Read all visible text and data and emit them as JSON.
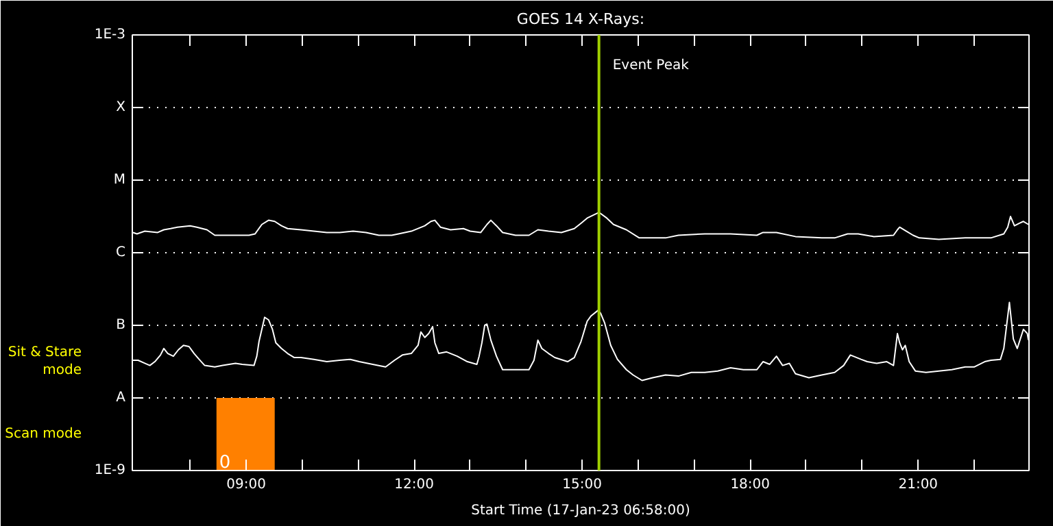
{
  "chart_data": {
    "type": "line",
    "title": "GOES 14 X-Rays:",
    "xlabel": "Start Time (17-Jan-23 06:58:00)",
    "log": "y",
    "grid": "y",
    "line_style": "solid",
    "marker": "none",
    "xlim": [
      6.967,
      22.98
    ],
    "xticks": [
      {
        "value": 8,
        "label": null
      },
      {
        "value": 9,
        "label": "09:00"
      },
      {
        "value": 10,
        "label": null
      },
      {
        "value": 11,
        "label": null
      },
      {
        "value": 12,
        "label": "12:00"
      },
      {
        "value": 13,
        "label": null
      },
      {
        "value": 14,
        "label": null
      },
      {
        "value": 15,
        "label": "15:00"
      },
      {
        "value": 16,
        "label": null
      },
      {
        "value": 17,
        "label": null
      },
      {
        "value": 18,
        "label": "18:00"
      },
      {
        "value": 19,
        "label": null
      },
      {
        "value": 20,
        "label": null
      },
      {
        "value": 21,
        "label": "21:00"
      },
      {
        "value": 22,
        "label": null
      }
    ],
    "ylim": [
      1e-09,
      0.001
    ],
    "yticks": [
      {
        "value": 1e-09,
        "label": "1E-9"
      },
      {
        "value": 1e-08,
        "label": "A"
      },
      {
        "value": 1e-07,
        "label": "B"
      },
      {
        "value": 1e-06,
        "label": "C"
      },
      {
        "value": 1e-05,
        "label": "M"
      },
      {
        "value": 0.0001,
        "label": "X"
      },
      {
        "value": 0.001,
        "label": "1E-3"
      }
    ],
    "series": [
      {
        "color": "#ffffff",
        "x": [
          6.98,
          7.05,
          7.19,
          7.42,
          7.53,
          7.65,
          7.77,
          8.0,
          8.12,
          8.3,
          8.44,
          8.81,
          9.05,
          9.16,
          9.28,
          9.4,
          9.51,
          9.63,
          9.74,
          9.98,
          10.21,
          10.44,
          10.67,
          10.91,
          11.14,
          11.37,
          11.6,
          11.72,
          11.95,
          12.19,
          12.3,
          12.37,
          12.47,
          12.65,
          12.88,
          13.0,
          13.19,
          13.3,
          13.37,
          13.47,
          13.58,
          13.81,
          14.05,
          14.21,
          14.4,
          14.63,
          14.86,
          14.98,
          15.09,
          15.3,
          15.44,
          15.56,
          15.79,
          16.02,
          16.49,
          16.72,
          17.19,
          17.65,
          18.12,
          18.23,
          18.47,
          18.81,
          19.28,
          19.51,
          19.74,
          19.93,
          20.21,
          20.56,
          20.63,
          20.67,
          20.79,
          20.91,
          21.02,
          21.37,
          21.84,
          22.3,
          22.53,
          22.6,
          22.65,
          22.72,
          22.81,
          22.88,
          22.97
        ],
        "values": [
          1.9e-06,
          1.82e-06,
          1.98e-06,
          1.9e-06,
          2.07e-06,
          2.15e-06,
          2.25e-06,
          2.35e-06,
          2.25e-06,
          2.07e-06,
          1.74e-06,
          1.74e-06,
          1.74e-06,
          1.82e-06,
          2.45e-06,
          2.8e-06,
          2.7e-06,
          2.35e-06,
          2.15e-06,
          2.07e-06,
          1.98e-06,
          1.9e-06,
          1.9e-06,
          1.98e-06,
          1.9e-06,
          1.74e-06,
          1.74e-06,
          1.82e-06,
          1.98e-06,
          2.35e-06,
          2.7e-06,
          2.8e-06,
          2.25e-06,
          2.07e-06,
          2.15e-06,
          1.98e-06,
          1.9e-06,
          2.45e-06,
          2.8e-06,
          2.35e-06,
          1.9e-06,
          1.74e-06,
          1.74e-06,
          2.07e-06,
          1.98e-06,
          1.9e-06,
          2.15e-06,
          2.55e-06,
          3e-06,
          3.6e-06,
          3e-06,
          2.45e-06,
          2.07e-06,
          1.6e-06,
          1.6e-06,
          1.74e-06,
          1.82e-06,
          1.82e-06,
          1.74e-06,
          1.9e-06,
          1.9e-06,
          1.67e-06,
          1.6e-06,
          1.6e-06,
          1.82e-06,
          1.82e-06,
          1.67e-06,
          1.74e-06,
          2.07e-06,
          2.25e-06,
          1.98e-06,
          1.74e-06,
          1.6e-06,
          1.53e-06,
          1.6e-06,
          1.6e-06,
          1.82e-06,
          2.25e-06,
          3.16e-06,
          2.35e-06,
          2.55e-06,
          2.7e-06,
          2.45e-06
        ]
      },
      {
        "color": "#ffffff",
        "x": [
          6.98,
          7.07,
          7.19,
          7.28,
          7.37,
          7.47,
          7.53,
          7.6,
          7.7,
          7.79,
          7.88,
          7.98,
          8.07,
          8.16,
          8.26,
          8.44,
          8.58,
          8.81,
          8.93,
          9.14,
          9.19,
          9.23,
          9.33,
          9.4,
          9.47,
          9.53,
          9.63,
          9.74,
          9.86,
          9.98,
          10.21,
          10.44,
          10.67,
          10.86,
          11.02,
          11.26,
          11.49,
          11.65,
          11.79,
          11.95,
          12.07,
          12.12,
          12.19,
          12.26,
          12.33,
          12.37,
          12.44,
          12.58,
          12.77,
          12.95,
          13.12,
          13.16,
          13.21,
          13.26,
          13.3,
          13.37,
          13.47,
          13.58,
          14.05,
          14.14,
          14.21,
          14.28,
          14.4,
          14.51,
          14.74,
          14.86,
          14.98,
          15.09,
          15.16,
          15.28,
          15.33,
          15.4,
          15.51,
          15.63,
          15.79,
          15.91,
          16.07,
          16.26,
          16.49,
          16.72,
          16.95,
          17.19,
          17.42,
          17.65,
          17.88,
          18.12,
          18.23,
          18.35,
          18.47,
          18.58,
          18.7,
          18.81,
          19.05,
          19.28,
          19.51,
          19.67,
          19.79,
          19.98,
          20.09,
          20.26,
          20.44,
          20.56,
          20.63,
          20.67,
          20.72,
          20.77,
          20.84,
          20.95,
          21.14,
          21.37,
          21.6,
          21.84,
          22.0,
          22.19,
          22.3,
          22.47,
          22.53,
          22.63,
          22.7,
          22.77,
          22.88,
          22.95,
          22.97
        ],
        "values": [
          3.3e-08,
          3.3e-08,
          3e-08,
          2.8e-08,
          3.16e-08,
          3.9e-08,
          4.8e-08,
          4.1e-08,
          3.75e-08,
          4.6e-08,
          5.3e-08,
          5.1e-08,
          4.1e-08,
          3.4e-08,
          2.8e-08,
          2.67e-08,
          2.8e-08,
          3e-08,
          2.9e-08,
          2.8e-08,
          3.75e-08,
          6e-08,
          1.29e-07,
          1.19e-07,
          8.8e-08,
          5.75e-08,
          4.8e-08,
          4.1e-08,
          3.6e-08,
          3.6e-08,
          3.4e-08,
          3.16e-08,
          3.3e-08,
          3.4e-08,
          3.16e-08,
          2.9e-08,
          2.67e-08,
          3.3e-08,
          3.9e-08,
          4.1e-08,
          5.3e-08,
          8.1e-08,
          6.8e-08,
          7.7e-08,
          9.6e-08,
          5.75e-08,
          4.1e-08,
          4.3e-08,
          3.75e-08,
          3.16e-08,
          2.9e-08,
          3.75e-08,
          5.75e-08,
          1e-07,
          1.04e-07,
          6.25e-08,
          3.75e-08,
          2.45e-08,
          2.45e-08,
          3.3e-08,
          6.25e-08,
          4.8e-08,
          4.1e-08,
          3.6e-08,
          3.16e-08,
          3.6e-08,
          6e-08,
          1.14e-07,
          1.35e-07,
          1.6e-07,
          1.47e-07,
          1.09e-07,
          5.3e-08,
          3.4e-08,
          2.45e-08,
          2.07e-08,
          1.74e-08,
          1.9e-08,
          2.07e-08,
          2e-08,
          2.25e-08,
          2.25e-08,
          2.35e-08,
          2.6e-08,
          2.45e-08,
          2.45e-08,
          3.16e-08,
          2.9e-08,
          3.75e-08,
          2.8e-08,
          3e-08,
          2.15e-08,
          1.9e-08,
          2.07e-08,
          2.25e-08,
          2.8e-08,
          3.9e-08,
          3.4e-08,
          3.16e-08,
          3e-08,
          3.16e-08,
          2.8e-08,
          7.7e-08,
          5.75e-08,
          4.6e-08,
          5.3e-08,
          3.16e-08,
          2.35e-08,
          2.25e-08,
          2.35e-08,
          2.45e-08,
          2.67e-08,
          2.67e-08,
          3.16e-08,
          3.3e-08,
          3.4e-08,
          4.8e-08,
          2.07e-07,
          6.5e-08,
          4.8e-08,
          8.8e-08,
          7.7e-08,
          6.25e-08
        ]
      }
    ],
    "ref_lines": [
      {
        "axis": "x",
        "value": 15.3,
        "label": "Event Peak",
        "color": "#a0d000"
      }
    ],
    "bands": [
      {
        "axis": "x",
        "from": 8.47,
        "to": 9.51,
        "label": "0",
        "color": "#ff8000"
      }
    ],
    "annotations": [
      "Sit & Stare mode",
      "Scan mode"
    ]
  }
}
